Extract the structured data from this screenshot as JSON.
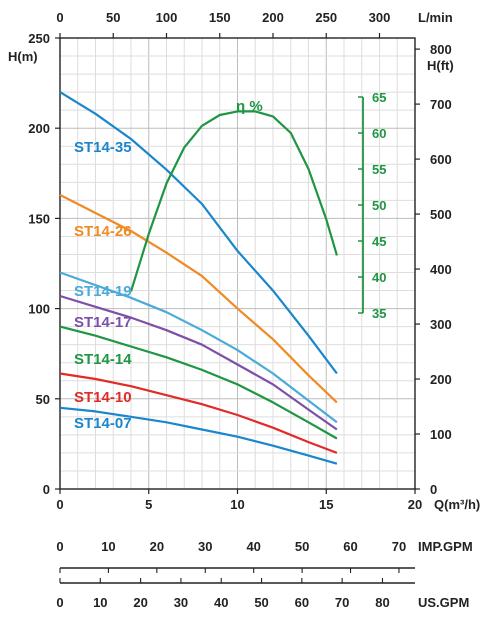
{
  "chart_data": {
    "type": "line",
    "axes": {
      "x_bottom": {
        "label": "Q(m³/h)",
        "range": [
          0,
          20
        ],
        "ticks": [
          "0",
          "5",
          "10",
          "15",
          "20"
        ]
      },
      "x_top": {
        "label": "L/min",
        "ticks": [
          "0",
          "50",
          "100",
          "150",
          "200",
          "250",
          "300"
        ]
      },
      "y_left": {
        "label": "H(m)",
        "range": [
          0,
          250
        ],
        "ticks": [
          "0",
          "50",
          "100",
          "150",
          "200",
          "250"
        ]
      },
      "y_right": {
        "label": "H(ft)",
        "ticks": [
          "0",
          "100",
          "200",
          "300",
          "400",
          "500",
          "600",
          "700",
          "800"
        ]
      },
      "efficiency": {
        "label": "η %",
        "range": [
          35,
          65
        ],
        "ticks": [
          "35",
          "40",
          "45",
          "50",
          "55",
          "60",
          "65"
        ]
      }
    },
    "grid": true,
    "series": [
      {
        "name": "ST14-35",
        "color": "#1a86cc",
        "points": [
          [
            0,
            220
          ],
          [
            2,
            208
          ],
          [
            4,
            194
          ],
          [
            6,
            177
          ],
          [
            8,
            158
          ],
          [
            10,
            132
          ],
          [
            12,
            110
          ],
          [
            14,
            85
          ],
          [
            15.6,
            64
          ]
        ]
      },
      {
        "name": "ST14-26",
        "color": "#f08a24",
        "points": [
          [
            0,
            163
          ],
          [
            2,
            153
          ],
          [
            4,
            143
          ],
          [
            6,
            131
          ],
          [
            8,
            118
          ],
          [
            10,
            100
          ],
          [
            12,
            83
          ],
          [
            14,
            63
          ],
          [
            15.6,
            48
          ]
        ]
      },
      {
        "name": "ST14-19",
        "color": "#4aaad8",
        "points": [
          [
            0,
            120
          ],
          [
            2,
            113
          ],
          [
            4,
            106
          ],
          [
            6,
            98
          ],
          [
            8,
            88
          ],
          [
            10,
            77
          ],
          [
            12,
            64
          ],
          [
            14,
            49
          ],
          [
            15.6,
            37
          ]
        ]
      },
      {
        "name": "ST14-17",
        "color": "#7d4fa8",
        "points": [
          [
            0,
            107
          ],
          [
            2,
            101
          ],
          [
            4,
            95
          ],
          [
            6,
            88
          ],
          [
            8,
            80
          ],
          [
            10,
            69
          ],
          [
            12,
            58
          ],
          [
            14,
            44
          ],
          [
            15.6,
            33
          ]
        ]
      },
      {
        "name": "ST14-14",
        "color": "#1e9643",
        "points": [
          [
            0,
            90
          ],
          [
            2,
            85
          ],
          [
            4,
            79
          ],
          [
            6,
            73
          ],
          [
            8,
            66
          ],
          [
            10,
            58
          ],
          [
            12,
            48
          ],
          [
            14,
            37
          ],
          [
            15.6,
            28
          ]
        ]
      },
      {
        "name": "ST14-10",
        "color": "#e12b26",
        "points": [
          [
            0,
            64
          ],
          [
            2,
            61
          ],
          [
            4,
            57
          ],
          [
            6,
            52
          ],
          [
            8,
            47
          ],
          [
            10,
            41
          ],
          [
            12,
            34
          ],
          [
            14,
            26
          ],
          [
            15.6,
            20
          ]
        ]
      },
      {
        "name": "ST14-07",
        "color": "#1a86cc",
        "points": [
          [
            0,
            45
          ],
          [
            2,
            43
          ],
          [
            4,
            40
          ],
          [
            6,
            37
          ],
          [
            8,
            33
          ],
          [
            10,
            29
          ],
          [
            12,
            24
          ],
          [
            14,
            18.5
          ],
          [
            15.6,
            14
          ]
        ]
      }
    ],
    "efficiency_curve": {
      "name": "η %",
      "color": "#1e9643",
      "points": [
        [
          4,
          38
        ],
        [
          5,
          46
        ],
        [
          6,
          53
        ],
        [
          7,
          58
        ],
        [
          8,
          61
        ],
        [
          9,
          62.5
        ],
        [
          10,
          63
        ],
        [
          11,
          63
        ],
        [
          12,
          62.3
        ],
        [
          13,
          60
        ],
        [
          14,
          55
        ],
        [
          15,
          48
        ],
        [
          15.6,
          43
        ]
      ]
    },
    "gpm_scales": {
      "imp": {
        "label": "IMP.GPM",
        "ticks": [
          "0",
          "10",
          "20",
          "30",
          "40",
          "50",
          "60",
          "70"
        ]
      },
      "us": {
        "label": "US.GPM",
        "ticks": [
          "0",
          "10",
          "20",
          "30",
          "40",
          "50",
          "60",
          "70",
          "80"
        ]
      }
    }
  }
}
